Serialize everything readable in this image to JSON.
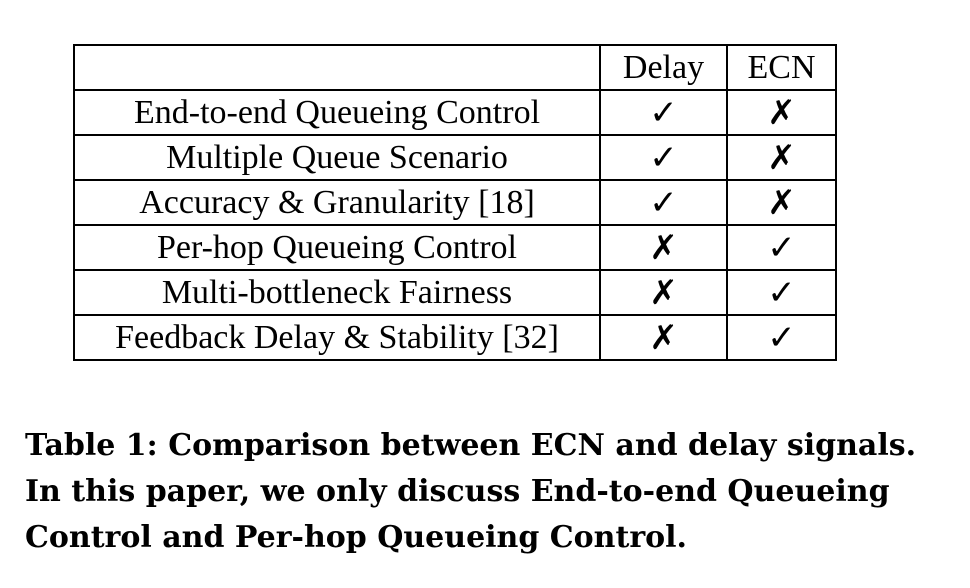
{
  "table": {
    "headers": [
      "",
      "Delay",
      "ECN"
    ],
    "rows": [
      [
        "End-to-end Queueing Control",
        "✓",
        "✗"
      ],
      [
        "Multiple Queue Scenario",
        "✓",
        "✗"
      ],
      [
        "Accuracy & Granularity [18]",
        "✓",
        "✗"
      ],
      [
        "Per-hop Queueing Control",
        "✗",
        "✓"
      ],
      [
        "Multi-bottleneck Fairness",
        "✗",
        "✓"
      ],
      [
        "Feedback Delay & Stability [32]",
        "✗",
        "✓"
      ]
    ]
  },
  "caption": {
    "lines": [
      "Table 1: Comparison between ECN and delay signals.",
      "In this paper, we only discuss End-to-end Queueing",
      "Control and Per-hop Queueing Control."
    ]
  }
}
